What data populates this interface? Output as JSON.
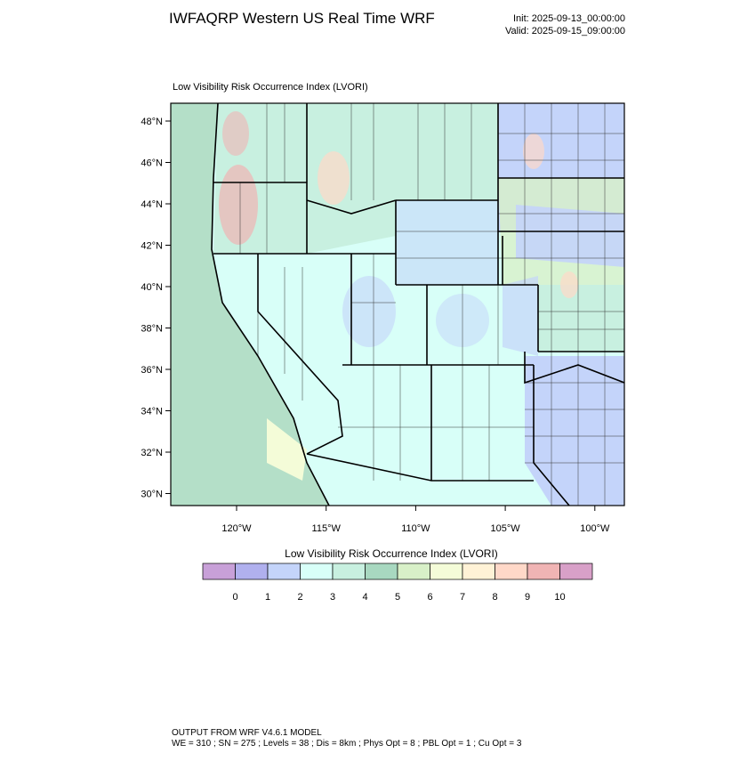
{
  "header": {
    "title": "IWFAQRP Western US Real Time WRF",
    "init": "Init: 2025-09-13_00:00:00",
    "valid": "Valid: 2025-09-15_09:00:00"
  },
  "map": {
    "title": "Low Visibility Risk Occurrence Index   (LVORI)",
    "lat_labels": [
      "48°N",
      "46°N",
      "44°N",
      "42°N",
      "40°N",
      "38°N",
      "36°N",
      "34°N",
      "32°N",
      "30°N"
    ],
    "lon_labels": [
      "120°W",
      "115°W",
      "110°W",
      "105°W",
      "100°W"
    ]
  },
  "colorbar": {
    "title": "Low Visibility Risk Occurrence Index  (LVORI)",
    "colors": [
      "#c8a0d8",
      "#b0b0ee",
      "#c4d4fa",
      "#d8fff8",
      "#c8f0e0",
      "#a8d8c0",
      "#d8f0c8",
      "#f4fcd8",
      "#fff2d6",
      "#ffd8c8",
      "#f0b4b4",
      "#d8a0c8"
    ],
    "ticks": [
      0,
      1,
      2,
      3,
      4,
      5,
      6,
      7,
      8,
      9,
      10
    ]
  },
  "footer": {
    "line1": "OUTPUT FROM WRF V4.6.1 MODEL",
    "line2": "WE = 310 ; SN = 275 ; Levels = 38 ; Dis = 8km ; Phys Opt = 8 ; PBL Opt = 1 ; Cu Opt = 3"
  }
}
